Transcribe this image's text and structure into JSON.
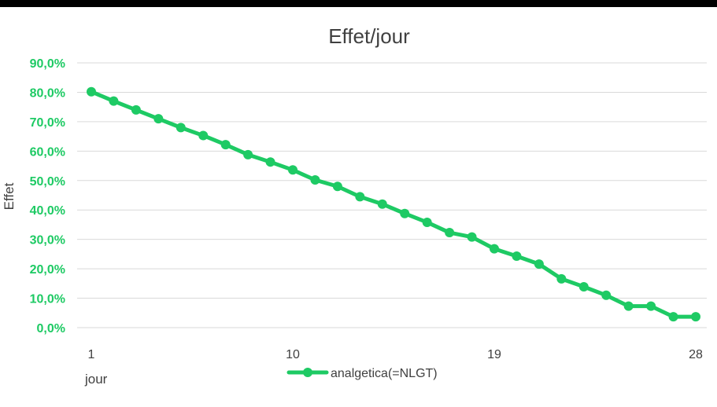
{
  "chart_data": {
    "type": "line",
    "title": "Effet/jour",
    "xlabel": "jour",
    "ylabel": "Effet",
    "x": [
      1,
      2,
      3,
      4,
      5,
      6,
      7,
      8,
      9,
      10,
      11,
      12,
      13,
      14,
      15,
      16,
      17,
      18,
      19,
      20,
      21,
      22,
      23,
      24,
      25,
      26,
      27,
      28
    ],
    "series": [
      {
        "name": "analgetica(=NLGT)",
        "values": [
          80.2,
          77.0,
          74.0,
          71.0,
          68.0,
          65.3,
          62.2,
          58.8,
          56.3,
          53.6,
          50.2,
          48.0,
          44.5,
          42.0,
          38.8,
          35.8,
          32.3,
          30.8,
          26.8,
          24.3,
          21.6,
          16.6,
          13.9,
          11.0,
          7.3,
          7.3,
          3.7,
          3.7
        ]
      }
    ],
    "xticks": [
      "1",
      "10",
      "19",
      "28"
    ],
    "yticks": [
      "0,0%",
      "10,0%",
      "20,0%",
      "30,0%",
      "40,0%",
      "50,0%",
      "60,0%",
      "70,0%",
      "80,0%",
      "90,0%"
    ],
    "ylim": [
      0,
      90
    ],
    "grid": true,
    "legend": "bottom",
    "colors": {
      "series": "#1ECA64",
      "tick_labels": "#1ECA64",
      "gridline": "#D9D9D9",
      "text": "#404040",
      "top_bar": "#000000"
    }
  }
}
